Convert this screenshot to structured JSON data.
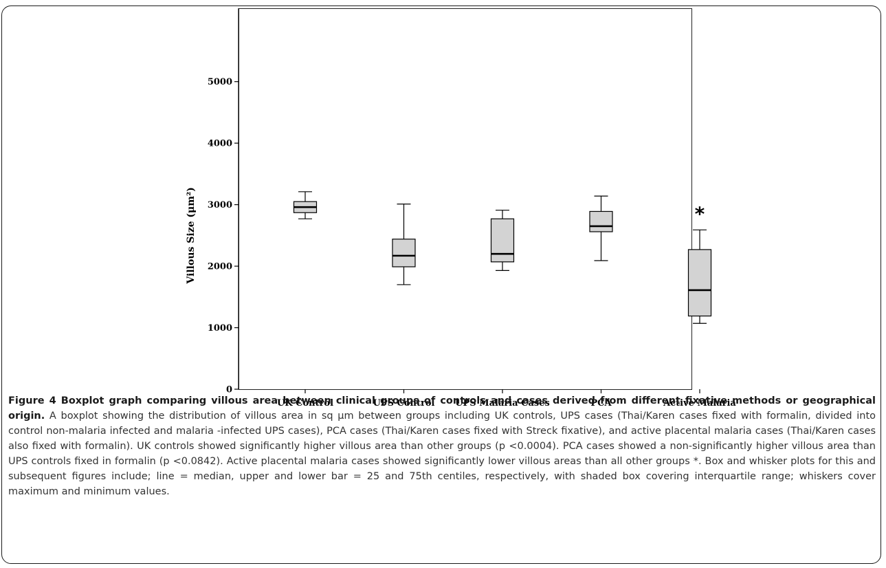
{
  "chart_data": {
    "type": "boxplot",
    "ylabel": "Villous Size (μm²)",
    "ylim": [
      0,
      5500
    ],
    "yticks": [
      0,
      1000,
      2000,
      3000,
      4000,
      5000
    ],
    "categories": [
      "UK Control",
      "UPS Control",
      "UPS Malaria Cases",
      "PCA",
      "Active Malaria"
    ],
    "boxes": [
      {
        "min": 2770,
        "q1": 2870,
        "median": 2960,
        "q3": 3050,
        "max": 3210
      },
      {
        "min": 1700,
        "q1": 1990,
        "median": 2170,
        "q3": 2440,
        "max": 3010
      },
      {
        "min": 1930,
        "q1": 2070,
        "median": 2200,
        "q3": 2770,
        "max": 2910
      },
      {
        "min": 2090,
        "q1": 2560,
        "median": 2650,
        "q3": 2890,
        "max": 3140
      },
      {
        "min": 1070,
        "q1": 1190,
        "median": 1610,
        "q3": 2270,
        "max": 2590
      }
    ],
    "annotations": [
      {
        "category": "Active Malaria",
        "text": "*"
      }
    ],
    "box_fill": "#d3d3d3"
  },
  "caption": {
    "lead": "Figure 4 Boxplot graph comparing villous area between clinical groups of controls and cases derived from different fixative methods or geographical origin.",
    "body": "A boxplot showing the distribution of villous area in sq μm between groups including UK controls, UPS cases (Thai/Karen cases fixed with formalin, divided into control non-malaria infected and malaria -infected UPS cases), PCA cases (Thai/Karen cases fixed with Streck fixative), and active placental malaria cases (Thai/Karen cases also fixed with formalin). UK controls showed significantly higher villous area than other groups (p <0.0004). PCA cases showed a non-significantly higher villous area than UPS controls fixed in formalin (p <0.0842). Active placental malaria cases showed significantly lower villous areas than all other groups *. Box and whisker plots for this and subsequent figures include; line = median, upper and lower bar = 25 and 75th centiles, respectively, with shaded box covering interquartile range; whiskers cover maximum and minimum values."
  }
}
